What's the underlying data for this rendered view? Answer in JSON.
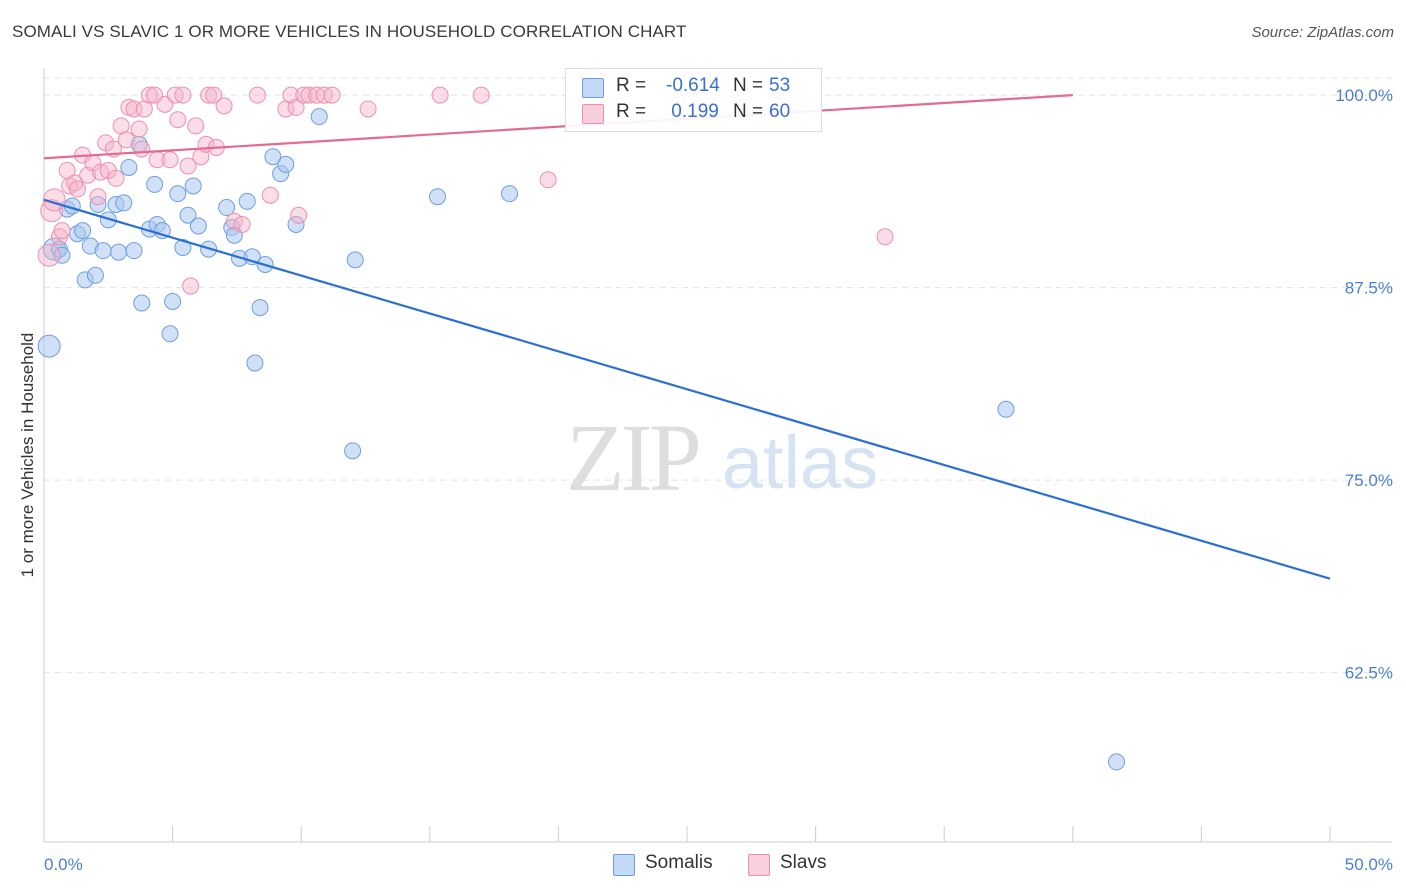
{
  "title": "SOMALI VS SLAVIC 1 OR MORE VEHICLES IN HOUSEHOLD CORRELATION CHART",
  "source": "Source: ZipAtlas.com",
  "watermark": {
    "zip": "ZIP",
    "atlas": "atlas"
  },
  "legend": {
    "somali": {
      "r_label": "R =",
      "r_value": "-0.614",
      "n_label": "N =",
      "n_value": "53"
    },
    "slavs": {
      "r_label": "R =",
      "r_value": " 0.199",
      "n_label": "N =",
      "n_value": "60"
    }
  },
  "bottom_legend": {
    "somali": "Somalis",
    "slavs": "Slavs"
  },
  "colors": {
    "somali_fill": "#a9c8f0",
    "somali_stroke": "#6d9ee0",
    "somali_line": "#2b6fd4",
    "slavs_fill": "#f5b3c8",
    "slavs_stroke": "#ee8fb0",
    "slavs_line": "#e46a92",
    "tick": "#4a7fd0"
  },
  "chart_data": {
    "type": "scatter",
    "title": "SOMALI VS SLAVIC 1 OR MORE VEHICLES IN HOUSEHOLD CORRELATION CHART",
    "xlabel": "",
    "ylabel": "1 or more Vehicles in Household",
    "xlim": [
      0,
      50
    ],
    "ylim": [
      51.5,
      101.5
    ],
    "x_tick_labels": [
      {
        "value": 0,
        "label": "0.0%"
      },
      {
        "value": 50,
        "label": "50.0%"
      }
    ],
    "y_tick_labels": [
      {
        "value": 100,
        "label": "100.0%"
      },
      {
        "value": 87.5,
        "label": "87.5%"
      },
      {
        "value": 75,
        "label": "75.0%"
      },
      {
        "value": 62.5,
        "label": "62.5%"
      }
    ],
    "series": [
      {
        "name": "Somalis",
        "R": -0.614,
        "N": 53,
        "trend": {
          "x": [
            0,
            50
          ],
          "y": [
            93.2,
            68.6
          ]
        },
        "points": [
          [
            0.2,
            83.7
          ],
          [
            0.4,
            90.0
          ],
          [
            0.6,
            90.0
          ],
          [
            0.7,
            89.6
          ],
          [
            0.9,
            92.6
          ],
          [
            1.1,
            92.8
          ],
          [
            1.3,
            91.0
          ],
          [
            1.5,
            91.2
          ],
          [
            1.6,
            88.0
          ],
          [
            1.8,
            90.2
          ],
          [
            2.0,
            88.3
          ],
          [
            2.1,
            92.9
          ],
          [
            2.3,
            89.9
          ],
          [
            2.5,
            91.9
          ],
          [
            2.8,
            92.9
          ],
          [
            2.9,
            89.8
          ],
          [
            3.1,
            93.0
          ],
          [
            3.3,
            95.3
          ],
          [
            3.5,
            89.9
          ],
          [
            3.7,
            96.8
          ],
          [
            3.8,
            86.5
          ],
          [
            4.1,
            91.3
          ],
          [
            4.3,
            94.2
          ],
          [
            4.4,
            91.6
          ],
          [
            4.6,
            91.2
          ],
          [
            4.9,
            84.5
          ],
          [
            5.0,
            86.6
          ],
          [
            5.2,
            93.6
          ],
          [
            5.4,
            90.1
          ],
          [
            5.6,
            92.2
          ],
          [
            5.8,
            94.1
          ],
          [
            6.0,
            91.5
          ],
          [
            6.4,
            90.0
          ],
          [
            7.1,
            92.7
          ],
          [
            7.3,
            91.4
          ],
          [
            7.4,
            90.9
          ],
          [
            7.6,
            89.4
          ],
          [
            7.9,
            93.1
          ],
          [
            8.1,
            89.5
          ],
          [
            8.2,
            82.6
          ],
          [
            8.4,
            86.2
          ],
          [
            8.6,
            89.0
          ],
          [
            8.9,
            96.0
          ],
          [
            9.2,
            94.9
          ],
          [
            9.4,
            95.5
          ],
          [
            9.8,
            91.6
          ],
          [
            10.7,
            98.6
          ],
          [
            12.0,
            76.9
          ],
          [
            12.1,
            89.3
          ],
          [
            15.3,
            93.4
          ],
          [
            18.1,
            93.6
          ],
          [
            37.4,
            79.6
          ],
          [
            41.7,
            56.7
          ]
        ]
      },
      {
        "name": "Slavs",
        "R": 0.199,
        "N": 60,
        "trend": {
          "x": [
            0,
            40
          ],
          "y": [
            95.9,
            100.0
          ]
        },
        "points": [
          [
            0.2,
            89.6
          ],
          [
            0.3,
            92.5
          ],
          [
            0.4,
            93.2
          ],
          [
            0.6,
            90.8
          ],
          [
            0.7,
            91.2
          ],
          [
            0.9,
            95.1
          ],
          [
            1.0,
            94.1
          ],
          [
            1.2,
            94.3
          ],
          [
            1.3,
            93.9
          ],
          [
            1.5,
            96.1
          ],
          [
            1.7,
            94.8
          ],
          [
            1.9,
            95.6
          ],
          [
            2.1,
            93.4
          ],
          [
            2.2,
            95.0
          ],
          [
            2.4,
            96.9
          ],
          [
            2.5,
            95.1
          ],
          [
            2.7,
            96.5
          ],
          [
            2.8,
            94.6
          ],
          [
            3.0,
            98.0
          ],
          [
            3.2,
            97.1
          ],
          [
            3.3,
            99.2
          ],
          [
            3.5,
            99.1
          ],
          [
            3.7,
            97.8
          ],
          [
            3.8,
            96.5
          ],
          [
            3.9,
            99.1
          ],
          [
            4.1,
            100.0
          ],
          [
            4.3,
            100.0
          ],
          [
            4.4,
            95.8
          ],
          [
            4.7,
            99.4
          ],
          [
            4.9,
            95.8
          ],
          [
            5.1,
            100.0
          ],
          [
            5.2,
            98.4
          ],
          [
            5.4,
            100.0
          ],
          [
            5.6,
            95.4
          ],
          [
            5.7,
            87.6
          ],
          [
            5.9,
            98.0
          ],
          [
            6.1,
            96.0
          ],
          [
            6.3,
            96.8
          ],
          [
            6.4,
            100.0
          ],
          [
            6.6,
            100.0
          ],
          [
            6.7,
            96.6
          ],
          [
            7.0,
            99.3
          ],
          [
            7.4,
            91.8
          ],
          [
            7.7,
            91.6
          ],
          [
            8.3,
            100.0
          ],
          [
            8.8,
            93.5
          ],
          [
            9.4,
            99.1
          ],
          [
            9.6,
            100.0
          ],
          [
            9.8,
            99.2
          ],
          [
            9.9,
            92.2
          ],
          [
            10.1,
            100.0
          ],
          [
            10.3,
            100.0
          ],
          [
            10.6,
            100.0
          ],
          [
            10.9,
            100.0
          ],
          [
            11.2,
            100.0
          ],
          [
            12.6,
            99.1
          ],
          [
            15.4,
            100.0
          ],
          [
            17.0,
            100.0
          ],
          [
            19.6,
            94.5
          ],
          [
            32.7,
            90.8
          ]
        ]
      }
    ]
  }
}
